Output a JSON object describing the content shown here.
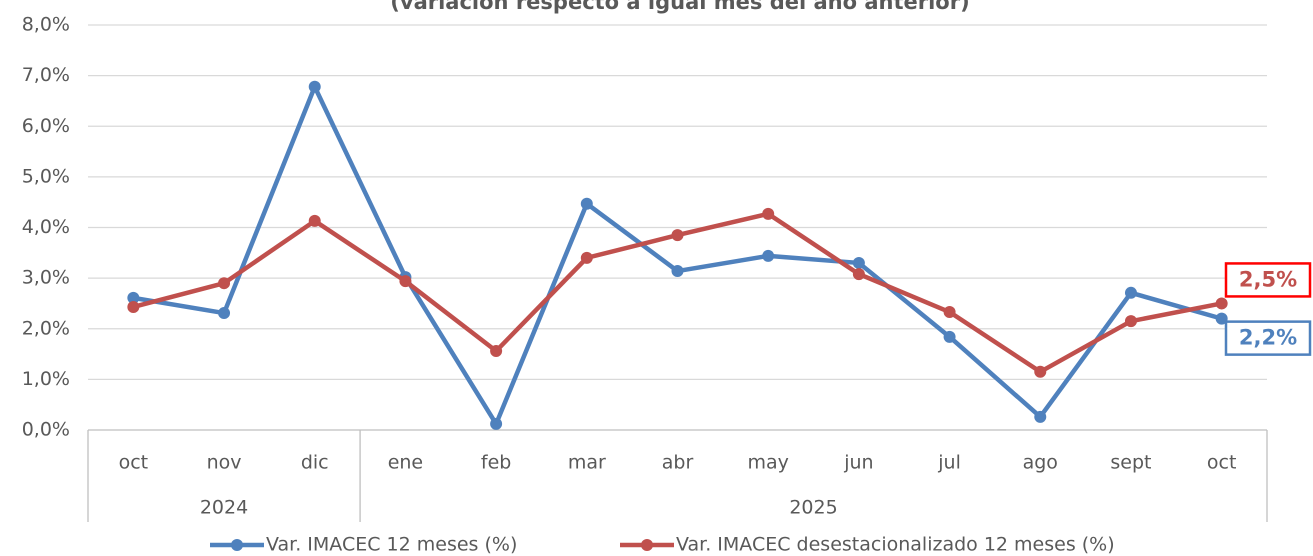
{
  "chart_data": {
    "type": "line",
    "title": "(variación respecto a igual mes del año anterior)",
    "categories": [
      "oct",
      "nov",
      "dic",
      "ene",
      "feb",
      "mar",
      "abr",
      "may",
      "jun",
      "jul",
      "ago",
      "sept",
      "oct"
    ],
    "groups": [
      {
        "label": "2024",
        "count": 3
      },
      {
        "label": "2025",
        "count": 10
      }
    ],
    "series": [
      {
        "name": "Var. IMACEC 12 meses (%)",
        "color": "#4f81bd",
        "values": [
          2.61,
          2.31,
          6.78,
          3.02,
          0.12,
          4.47,
          3.14,
          3.44,
          3.3,
          1.84,
          0.26,
          2.71,
          2.2
        ],
        "value_labels": [
          null,
          null,
          null,
          null,
          null,
          null,
          null,
          null,
          null,
          null,
          null,
          null,
          "2,2%"
        ],
        "label_border": "#4f81bd"
      },
      {
        "name": "Var. IMACEC desestacionalizado 12 meses (%)",
        "color": "#c0504d",
        "values": [
          2.43,
          2.9,
          4.13,
          2.94,
          1.56,
          3.4,
          3.85,
          4.27,
          3.08,
          2.33,
          1.15,
          2.15,
          2.5
        ],
        "value_labels": [
          null,
          null,
          null,
          null,
          null,
          null,
          null,
          null,
          null,
          null,
          null,
          null,
          "2,5%"
        ],
        "label_border": "#ff0000"
      }
    ],
    "ylim": [
      0,
      8
    ],
    "yticks": [
      {
        "value": 0,
        "label": "0,0%"
      },
      {
        "value": 1,
        "label": "1,0%"
      },
      {
        "value": 2,
        "label": "2,0%"
      },
      {
        "value": 3,
        "label": "3,0%"
      },
      {
        "value": 4,
        "label": "4,0%"
      },
      {
        "value": 5,
        "label": "5,0%"
      },
      {
        "value": 6,
        "label": "6,0%"
      },
      {
        "value": 7,
        "label": "7,0%"
      },
      {
        "value": 8,
        "label": "8,0%"
      }
    ],
    "grid": true,
    "legend": "bottom"
  }
}
